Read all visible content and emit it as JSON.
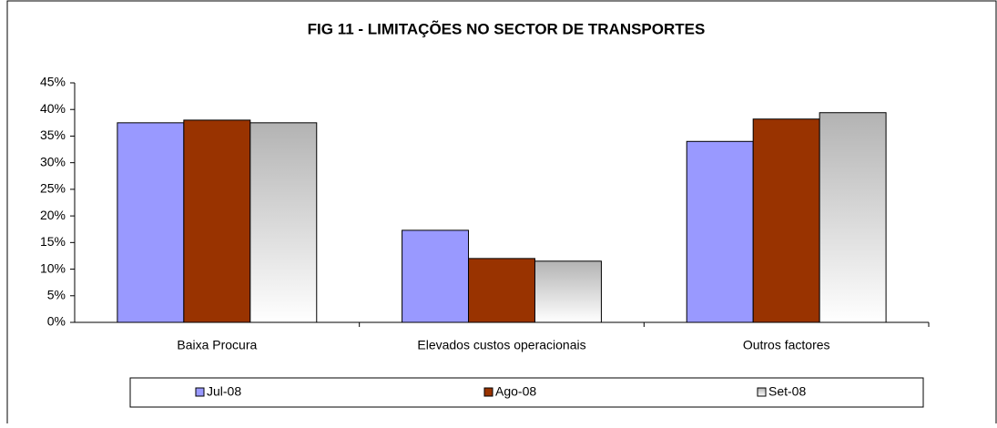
{
  "chart_data": {
    "type": "bar",
    "title": "FIG 11 - LIMITAÇÕES  NO SECTOR DE  TRANSPORTES",
    "categories": [
      "Baixa Procura",
      "Elevados custos operacionais",
      "Outros factores"
    ],
    "series": [
      {
        "name": "Jul-08",
        "color": "#9999ff",
        "values": [
          37.5,
          17.3,
          34
        ]
      },
      {
        "name": "Ago-08",
        "color": "#993300",
        "values": [
          38,
          12,
          38.2
        ]
      },
      {
        "name": "Set-08",
        "color": "#c0c0c0",
        "values": [
          37.5,
          11.5,
          39.4
        ]
      }
    ],
    "ylim": [
      0,
      45
    ],
    "yticks": [
      {
        "value": 0,
        "label": "0%"
      },
      {
        "value": 5,
        "label": "5%"
      },
      {
        "value": 10,
        "label": "10%"
      },
      {
        "value": 15,
        "label": "15%"
      },
      {
        "value": 20,
        "label": "20%"
      },
      {
        "value": 25,
        "label": "25%"
      },
      {
        "value": 30,
        "label": "30%"
      },
      {
        "value": 35,
        "label": "35%"
      },
      {
        "value": 40,
        "label": "40%"
      },
      {
        "value": 45,
        "label": "45%"
      }
    ],
    "legend": "bottom"
  }
}
